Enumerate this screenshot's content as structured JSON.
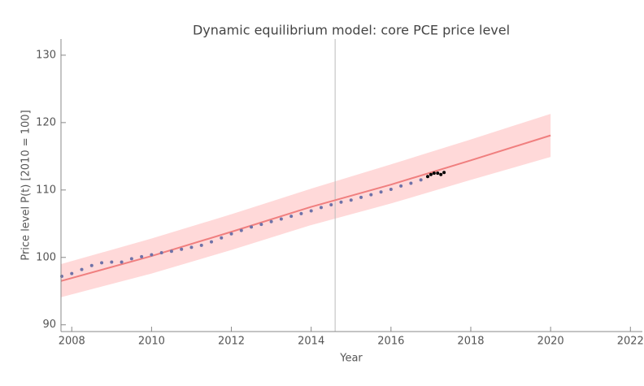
{
  "chart_data": {
    "type": "line",
    "title": "Dynamic equilibrium model: core PCE price level",
    "x_label": "Year",
    "y_label": "Price level P(t) [2010 = 100]",
    "xlim": [
      2007.73,
      2022.3
    ],
    "ylim": [
      89,
      132.4
    ],
    "xticks": [
      2008,
      2010,
      2012,
      2014,
      2016,
      2018,
      2020,
      2022
    ],
    "yticks": [
      90,
      100,
      110,
      120,
      130
    ],
    "vline": 2014.6,
    "model": {
      "color": "#f07f7f",
      "band_color": "#ffd9d9",
      "x": [
        2007.73,
        2010,
        2012,
        2014,
        2016,
        2018,
        2020
      ],
      "values": [
        96.5,
        100.2,
        103.8,
        107.5,
        110.8,
        114.4,
        118.1
      ],
      "upper": [
        99.0,
        102.8,
        106.4,
        110.2,
        113.8,
        117.5,
        121.3
      ],
      "lower": [
        94.1,
        97.6,
        101.1,
        104.8,
        108.0,
        111.5,
        114.9
      ]
    },
    "series": [
      {
        "color": "#6f72a8",
        "x": [
          2007.75,
          2008.0,
          2008.25,
          2008.5,
          2008.75,
          2009.0,
          2009.25,
          2009.5,
          2009.75,
          2010.0,
          2010.25,
          2010.5,
          2010.75,
          2011.0,
          2011.25,
          2011.5,
          2011.75,
          2012.0,
          2012.25,
          2012.5,
          2012.75,
          2013.0,
          2013.25,
          2013.5,
          2013.75,
          2014.0,
          2014.25,
          2014.5,
          2014.75,
          2015.0,
          2015.25,
          2015.5,
          2015.75,
          2016.0,
          2016.25,
          2016.5,
          2016.75
        ],
        "values": [
          97.2,
          97.6,
          98.2,
          98.8,
          99.2,
          99.3,
          99.3,
          99.8,
          100.1,
          100.4,
          100.7,
          100.9,
          101.2,
          101.5,
          101.8,
          102.3,
          102.9,
          103.5,
          104.0,
          104.5,
          104.9,
          105.3,
          105.7,
          106.1,
          106.5,
          106.9,
          107.4,
          107.8,
          108.2,
          108.5,
          108.9,
          109.3,
          109.7,
          110.1,
          110.6,
          111.0,
          111.5
        ]
      },
      {
        "color": "#000000",
        "x": [
          2016.92,
          2017.0,
          2017.08,
          2017.17,
          2017.25,
          2017.33
        ],
        "values": [
          112.0,
          112.3,
          112.5,
          112.5,
          112.3,
          112.6
        ]
      }
    ]
  }
}
